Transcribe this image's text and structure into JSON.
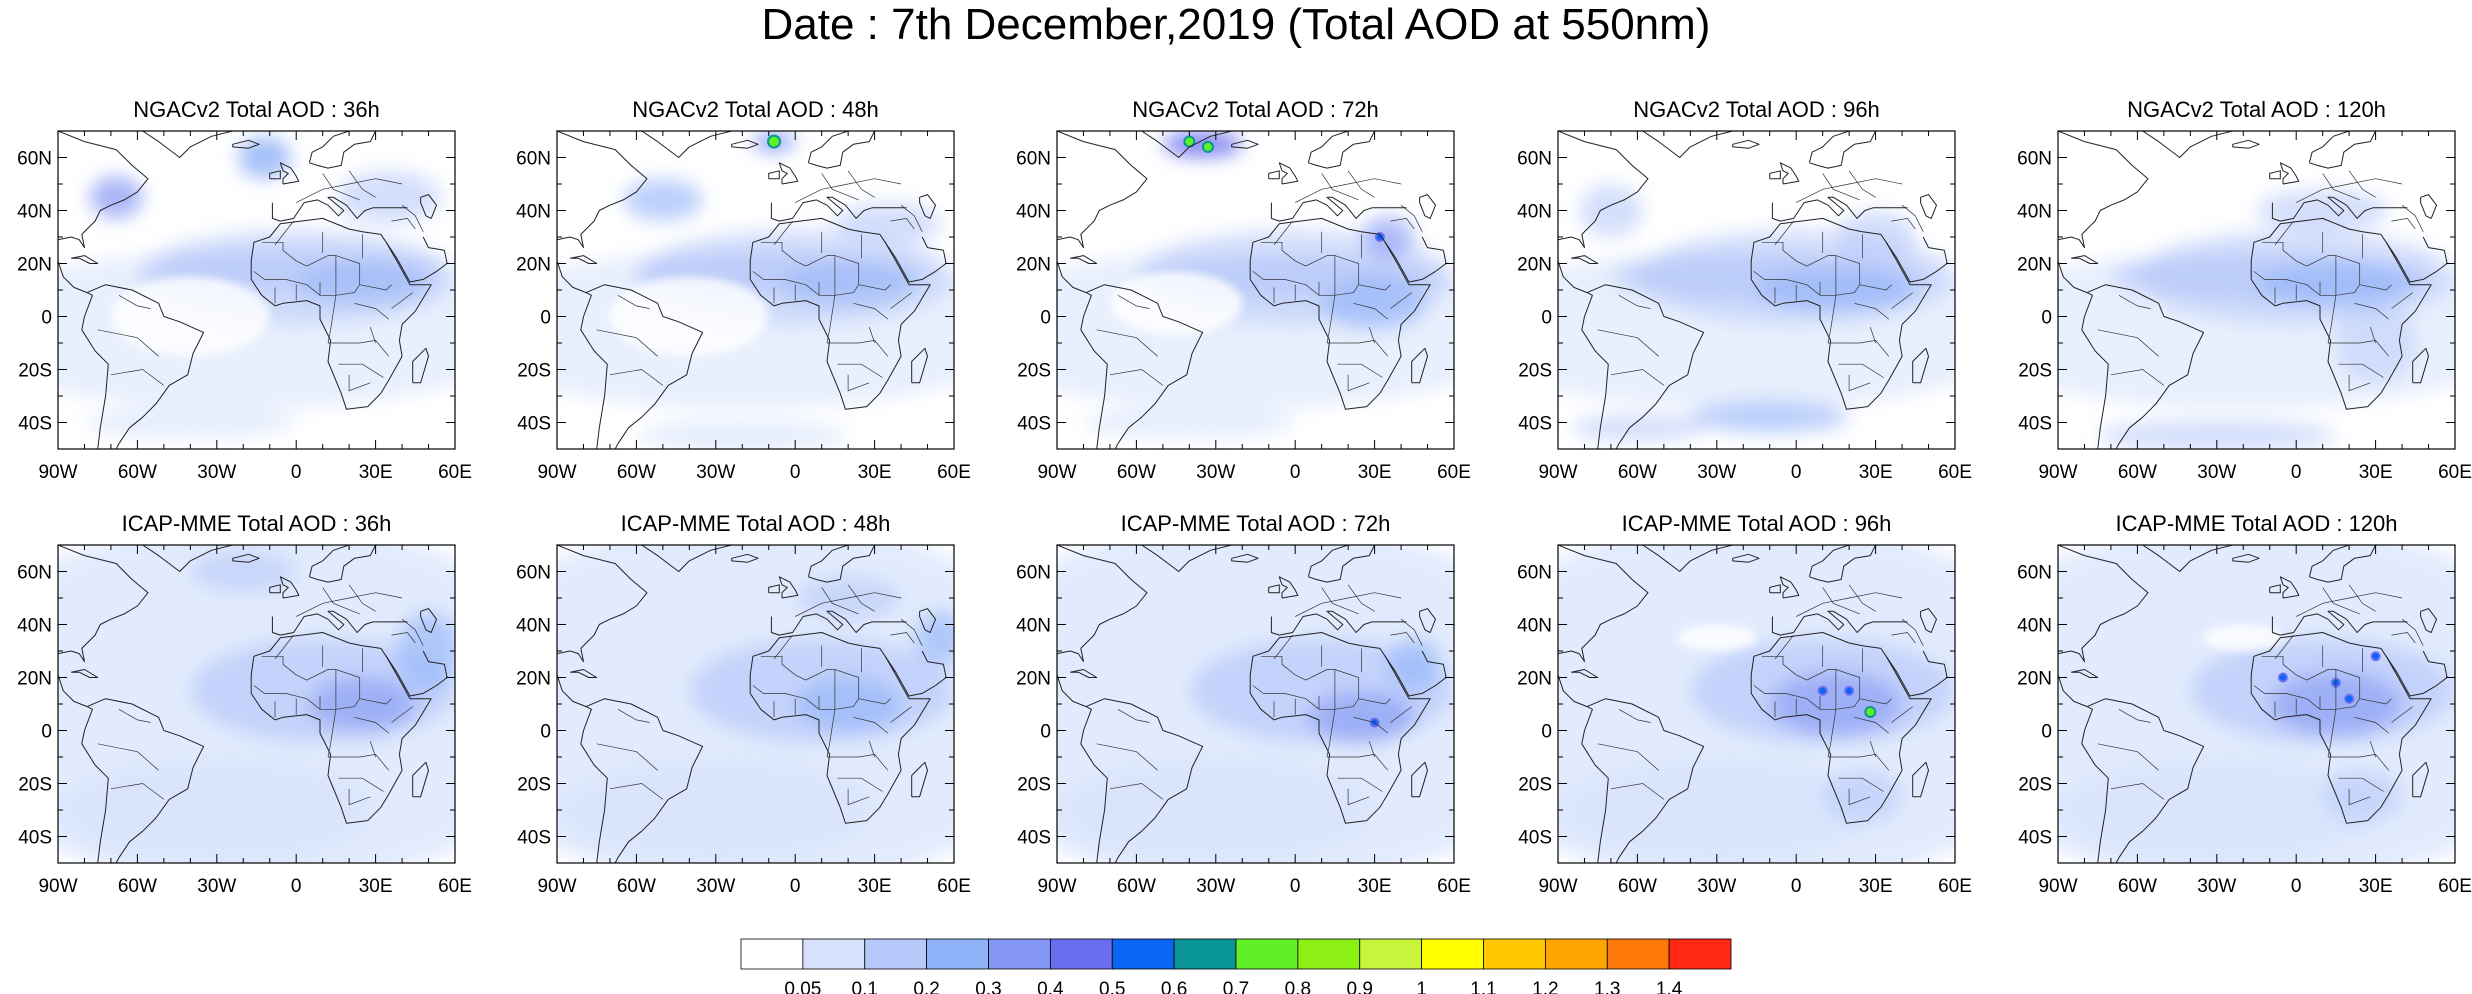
{
  "title": "Date : 7th December,2019 (Total AOD at 550nm)",
  "rows": [
    {
      "panels": [
        {
          "title": "NGACv2 Total AOD : 36h"
        },
        {
          "title": "NGACv2 Total AOD : 48h"
        },
        {
          "title": "NGACv2 Total AOD : 72h"
        },
        {
          "title": "NGACv2 Total AOD : 96h"
        },
        {
          "title": "NGACv2 Total AOD : 120h"
        }
      ]
    },
    {
      "panels": [
        {
          "title": "ICAP-MME Total AOD : 36h"
        },
        {
          "title": "ICAP-MME Total AOD : 48h"
        },
        {
          "title": "ICAP-MME Total AOD : 72h"
        },
        {
          "title": "ICAP-MME Total AOD : 96h"
        },
        {
          "title": "ICAP-MME Total AOD : 120h"
        }
      ]
    }
  ],
  "lon_ticks": [
    "90W",
    "60W",
    "30W",
    "0",
    "30E",
    "60E"
  ],
  "lon_values": [
    -90,
    -60,
    -30,
    0,
    30,
    60
  ],
  "lat_ticks": [
    "60N",
    "40N",
    "20N",
    "0",
    "20S",
    "40S"
  ],
  "lat_values": [
    60,
    40,
    20,
    0,
    -20,
    -40
  ],
  "lon_range": [
    -90,
    60
  ],
  "lat_range": [
    -50,
    70
  ],
  "colorbar": {
    "colors": [
      "#ffffff",
      "#d6e2fc",
      "#b7c9fa",
      "#90b2f8",
      "#8497f4",
      "#6a6ef0",
      "#0a64f4",
      "#0a9696",
      "#60f028",
      "#8cf014",
      "#c8f53c",
      "#ffff00",
      "#ffc800",
      "#ffa500",
      "#ff780a",
      "#ff2814"
    ],
    "labels": [
      "0.05",
      "0.1",
      "0.2",
      "0.3",
      "0.4",
      "0.5",
      "0.6",
      "0.7",
      "0.8",
      "0.9",
      "1",
      "1.1",
      "1.2",
      "1.3",
      "1.4"
    ]
  }
}
